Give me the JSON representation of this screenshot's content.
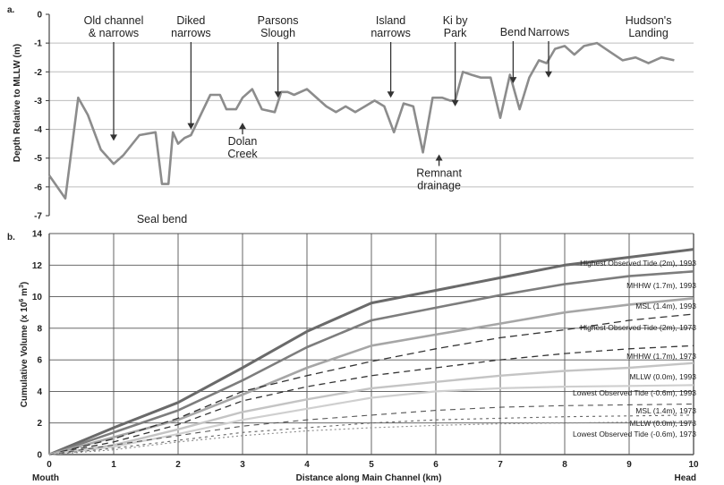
{
  "chart_data": [
    {
      "panel_label": "a.",
      "type": "line",
      "ylabel": "Depth Relative to MLLW (m)",
      "ylim": [
        -7,
        0
      ],
      "xlim": [
        0,
        10
      ],
      "yticks": [
        "0",
        "-1",
        "-2",
        "-3",
        "-4",
        "-5",
        "-6",
        "-7"
      ],
      "grid": true,
      "series": [
        {
          "x": [
            0,
            0.25,
            0.45,
            0.6,
            0.8,
            1.0,
            1.15,
            1.4,
            1.65,
            1.75,
            1.85,
            1.92,
            2.0,
            2.1,
            2.2,
            2.35,
            2.5,
            2.65,
            2.75,
            2.9,
            3.0,
            3.15,
            3.3,
            3.5,
            3.6,
            3.7,
            3.8,
            4.0,
            4.3,
            4.45,
            4.6,
            4.75,
            4.9,
            5.05,
            5.2,
            5.35,
            5.5,
            5.65,
            5.8,
            5.95,
            6.1,
            6.22,
            6.3,
            6.42,
            6.55,
            6.7,
            6.85,
            7.0,
            7.15,
            7.3,
            7.45,
            7.6,
            7.72,
            7.85,
            8.0,
            8.15,
            8.3,
            8.5,
            8.7,
            8.9,
            9.1,
            9.3,
            9.5,
            9.7
          ],
          "y": [
            -5.6,
            -6.4,
            -2.9,
            -3.5,
            -4.7,
            -5.2,
            -4.9,
            -4.2,
            -4.1,
            -5.9,
            -5.9,
            -4.1,
            -4.5,
            -4.3,
            -4.2,
            -3.5,
            -2.8,
            -2.8,
            -3.3,
            -3.3,
            -2.9,
            -2.6,
            -3.3,
            -3.4,
            -2.7,
            -2.7,
            -2.8,
            -2.6,
            -3.2,
            -3.4,
            -3.2,
            -3.4,
            -3.2,
            -3.0,
            -3.2,
            -4.1,
            -3.1,
            -3.2,
            -4.8,
            -2.9,
            -2.9,
            -3.0,
            -3.0,
            -2.0,
            -2.1,
            -2.2,
            -2.2,
            -3.6,
            -2.1,
            -3.3,
            -2.2,
            -1.6,
            -1.7,
            -1.2,
            -1.1,
            -1.4,
            -1.1,
            -1.0,
            -1.3,
            -1.6,
            -1.5,
            -1.7,
            -1.5,
            -1.6
          ]
        }
      ],
      "annotations": [
        {
          "text": [
            "Old channel",
            "& narrows"
          ],
          "x": 1.0,
          "y": -4.4
        },
        {
          "text": [
            "Diked",
            "narrows"
          ],
          "x": 2.2,
          "y": -4.0
        },
        {
          "text": [
            "Parsons",
            "Slough"
          ],
          "x": 3.55,
          "y": -2.9
        },
        {
          "text": [
            "Island",
            "narrows"
          ],
          "x": 5.3,
          "y": -2.9
        },
        {
          "text": [
            "Bend"
          ],
          "x": 7.2,
          "y": -2.4
        },
        {
          "text": [
            "Narrows"
          ],
          "x": 7.75,
          "y": -2.2
        },
        {
          "text": [
            "Hudson's",
            "Landing"
          ],
          "x": 9.3,
          "y": -1.8
        },
        {
          "text": [
            "Dolan",
            "Creek"
          ],
          "x": 3.0,
          "y": -3.8
        },
        {
          "text": [
            "Ki by",
            "Park"
          ],
          "x": 6.3,
          "y": -3.2
        },
        {
          "text": [
            "Remnant",
            "drainage"
          ],
          "x": 6.05,
          "y": -4.9
        },
        {
          "text": [
            "Seal bend"
          ],
          "x": 1.75,
          "y": -6.5
        }
      ]
    },
    {
      "panel_label": "b.",
      "type": "line",
      "xlabel": "Distance along Main Channel (km)",
      "ylabel": "Cumulative Volume (x 10^6 m^3)",
      "xlim": [
        0,
        10
      ],
      "ylim": [
        0,
        14
      ],
      "xticks": [
        "0",
        "1",
        "2",
        "3",
        "4",
        "5",
        "6",
        "7",
        "8",
        "9",
        "10"
      ],
      "yticks": [
        "0",
        "2",
        "4",
        "6",
        "8",
        "10",
        "12",
        "14"
      ],
      "x_end_labels": [
        "Mouth",
        "Head"
      ],
      "grid": true,
      "x": [
        0,
        1,
        2,
        3,
        4,
        5,
        6,
        7,
        8,
        9,
        10
      ],
      "series": [
        {
          "name": "Highest Observed Tide (2m), 1993",
          "values": [
            0,
            1.7,
            3.3,
            5.5,
            7.8,
            9.6,
            10.4,
            11.2,
            12.0,
            12.5,
            13.0
          ]
        },
        {
          "name": "MHHW (1.7m), 1993",
          "values": [
            0,
            1.4,
            2.8,
            4.7,
            6.8,
            8.5,
            9.3,
            10.1,
            10.8,
            11.3,
            11.6
          ]
        },
        {
          "name": "MSL (1.4m), 1993",
          "values": [
            0,
            1.1,
            2.2,
            3.8,
            5.5,
            6.9,
            7.6,
            8.3,
            9.0,
            9.5,
            9.9
          ]
        },
        {
          "name": "Highest Observed Tide (2m), 1973",
          "values": [
            0,
            1.0,
            2.3,
            4.0,
            5.0,
            5.9,
            6.7,
            7.4,
            7.9,
            8.5,
            8.9
          ]
        },
        {
          "name": "MHHW (1.7m), 1973",
          "values": [
            0,
            0.8,
            1.9,
            3.4,
            4.3,
            5.0,
            5.5,
            6.0,
            6.4,
            6.7,
            6.9
          ]
        },
        {
          "name": "MLLW (0.0m), 1993",
          "values": [
            0,
            0.6,
            1.6,
            2.7,
            3.5,
            4.2,
            4.6,
            5.0,
            5.3,
            5.5,
            5.8
          ]
        },
        {
          "name": "Lowest Observed Tide (-0.6m), 1993",
          "values": [
            0,
            0.5,
            1.3,
            2.2,
            2.9,
            3.6,
            4.0,
            4.2,
            4.3,
            4.35,
            4.4
          ]
        },
        {
          "name": "MSL (1.4m), 1973",
          "values": [
            0,
            0.6,
            1.2,
            1.8,
            2.2,
            2.5,
            2.8,
            3.0,
            3.1,
            3.15,
            3.2
          ]
        },
        {
          "name": "MLLW (0.0m), 1973",
          "values": [
            0,
            0.4,
            0.9,
            1.4,
            1.7,
            2.0,
            2.2,
            2.3,
            2.4,
            2.45,
            2.5
          ]
        },
        {
          "name": "Lowest Observed Tide (-0.6m), 1973",
          "values": [
            0,
            0.3,
            0.8,
            1.2,
            1.5,
            1.7,
            1.85,
            1.95,
            2.0,
            2.05,
            2.1
          ]
        }
      ]
    }
  ]
}
